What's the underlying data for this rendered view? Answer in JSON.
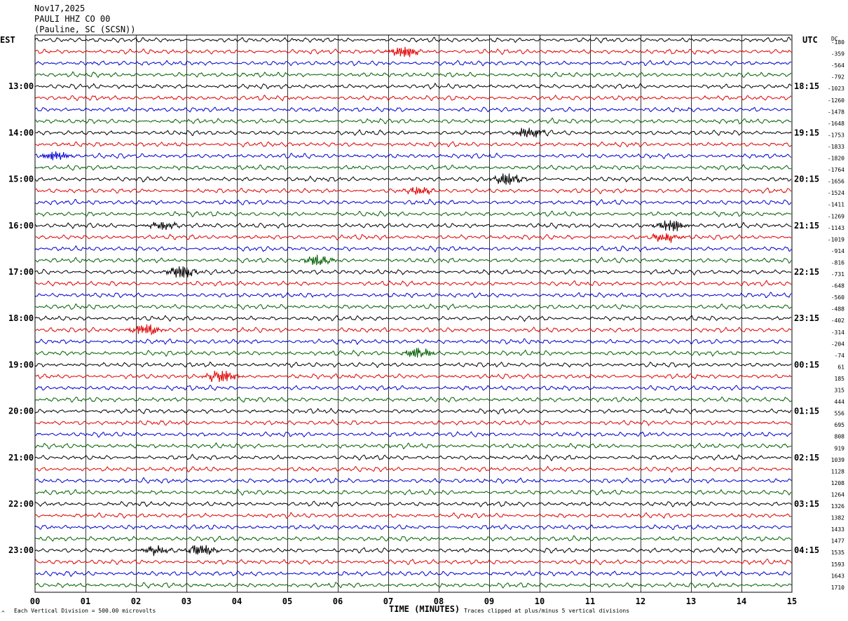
{
  "header": {
    "date": "Nov17,2025",
    "station": "PAULI HHZ CO 00",
    "location": "(Pauline, SC (SCSN))"
  },
  "left_tz": "EST",
  "right_tz": "UTC",
  "dc_title": "DC",
  "footer": {
    "scale_note": "Each Vertical Division =  500.00 microvolts",
    "clip_note": "Traces clipped at plus/minus 5 vertical divisions",
    "corner_mark": "^"
  },
  "colors": {
    "cycle": [
      "#000000",
      "#e00000",
      "#0000d0",
      "#006000"
    ],
    "grid": "#000000"
  },
  "chart_data": {
    "type": "line",
    "title": "PAULI HHZ CO 00",
    "xlabel": "TIME (MINUTES)",
    "x_ticks": [
      "00",
      "01",
      "02",
      "03",
      "04",
      "05",
      "06",
      "07",
      "08",
      "09",
      "10",
      "11",
      "12",
      "13",
      "14",
      "15"
    ],
    "xlim": [
      0,
      15
    ],
    "row_count": 48,
    "est_labels": [
      "13:00",
      "14:00",
      "15:00",
      "16:00",
      "17:00",
      "18:00",
      "19:00",
      "20:00",
      "21:00",
      "22:00",
      "23:00"
    ],
    "utc_labels": [
      "18:15",
      "19:15",
      "20:15",
      "21:15",
      "22:15",
      "23:15",
      "00:15",
      "01:15",
      "02:15",
      "03:15",
      "04:15"
    ],
    "dc_offsets": [
      "-180",
      "-359",
      "-564",
      "-792",
      "-1023",
      "-1260",
      "-1478",
      "-1648",
      "-1753",
      "-1833",
      "-1820",
      "-1764",
      "-1656",
      "-1524",
      "-1411",
      "-1269",
      "-1143",
      "-1019",
      "-914",
      "-816",
      "-731",
      "-648",
      "-560",
      "-488",
      "-402",
      "-314",
      "-204",
      "-74",
      "61",
      "185",
      "315",
      "444",
      "556",
      "695",
      "808",
      "919",
      "1039",
      "1128",
      "1208",
      "1264",
      "1326",
      "1382",
      "1433",
      "1477",
      "1535",
      "1593",
      "1643",
      "1710"
    ],
    "events": [
      {
        "row": 1,
        "minute": 7.3,
        "amp": 3.0
      },
      {
        "row": 8,
        "minute": 9.8,
        "amp": 2.8
      },
      {
        "row": 10,
        "minute": 0.4,
        "amp": 2.4
      },
      {
        "row": 12,
        "minute": 9.4,
        "amp": 3.0
      },
      {
        "row": 13,
        "minute": 7.6,
        "amp": 2.0
      },
      {
        "row": 16,
        "minute": 2.5,
        "amp": 2.2
      },
      {
        "row": 16,
        "minute": 12.6,
        "amp": 3.2
      },
      {
        "row": 17,
        "minute": 12.5,
        "amp": 2.2
      },
      {
        "row": 19,
        "minute": 5.6,
        "amp": 2.4
      },
      {
        "row": 20,
        "minute": 2.9,
        "amp": 3.4
      },
      {
        "row": 25,
        "minute": 2.2,
        "amp": 3.0
      },
      {
        "row": 27,
        "minute": 7.6,
        "amp": 2.8
      },
      {
        "row": 29,
        "minute": 3.7,
        "amp": 3.0
      },
      {
        "row": 44,
        "minute": 3.3,
        "amp": 3.2
      },
      {
        "row": 44,
        "minute": 2.4,
        "amp": 2.0
      }
    ]
  }
}
